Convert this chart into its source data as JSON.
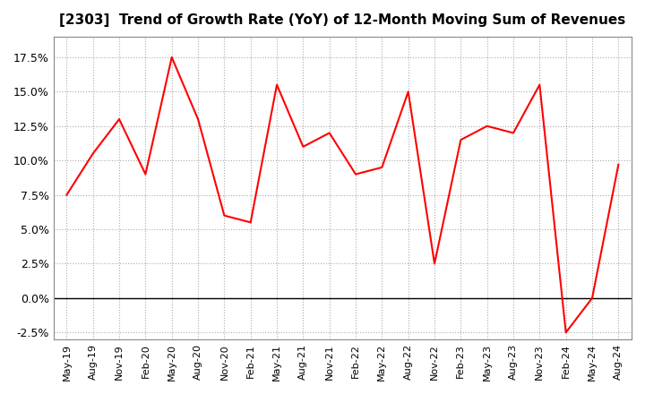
{
  "title": "[2303]  Trend of Growth Rate (YoY) of 12-Month Moving Sum of Revenues",
  "line_color": "#ff0000",
  "background_color": "#ffffff",
  "grid_color": "#aaaaaa",
  "ylim": [
    -0.03,
    0.19
  ],
  "yticks": [
    -0.025,
    0.0,
    0.025,
    0.05,
    0.075,
    0.1,
    0.125,
    0.15,
    0.175
  ],
  "values": [
    0.075,
    0.105,
    0.13,
    0.09,
    0.175,
    0.13,
    0.06,
    0.055,
    0.155,
    0.11,
    0.12,
    0.09,
    0.095,
    0.15,
    0.025,
    0.115,
    0.125,
    0.12,
    0.155,
    -0.025,
    0.0,
    0.097
  ],
  "xtick_labels": [
    "May-19",
    "Aug-19",
    "Nov-19",
    "Feb-20",
    "May-20",
    "Aug-20",
    "Nov-20",
    "Feb-21",
    "May-21",
    "Aug-21",
    "Nov-21",
    "Feb-22",
    "May-22",
    "Aug-22",
    "Nov-22",
    "Feb-23",
    "May-23",
    "Aug-23",
    "Nov-23",
    "Feb-24",
    "May-24",
    "Aug-24"
  ]
}
